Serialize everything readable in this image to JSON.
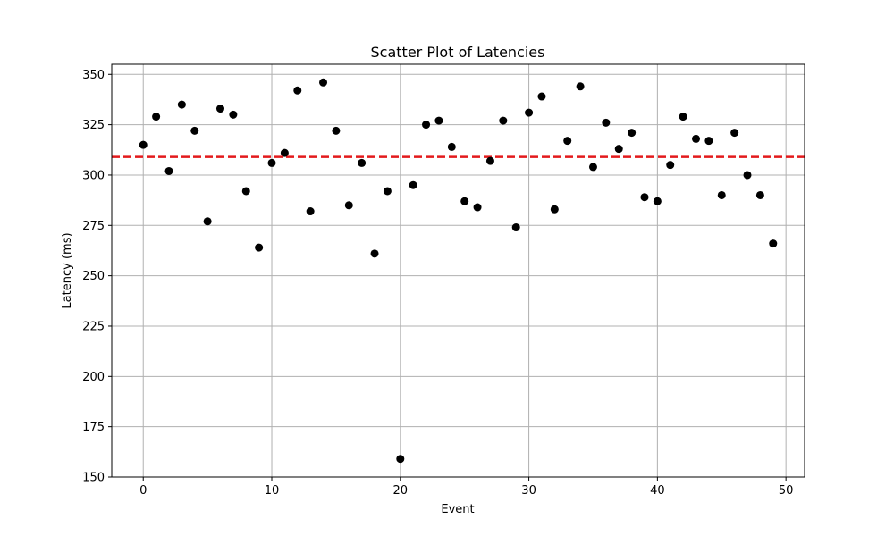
{
  "chart_data": {
    "type": "scatter",
    "title": "Scatter Plot of Latencies",
    "xlabel": "Event",
    "ylabel": "Latency (ms)",
    "xlim": [
      -2.45,
      51.45
    ],
    "ylim": [
      150,
      355
    ],
    "xticks": [
      0,
      10,
      20,
      30,
      40,
      50
    ],
    "yticks": [
      150,
      175,
      200,
      225,
      250,
      275,
      300,
      325,
      350
    ],
    "grid": true,
    "series": [
      {
        "color": "#000000",
        "x": [
          0,
          1,
          2,
          3,
          4,
          5,
          6,
          7,
          8,
          9,
          10,
          11,
          12,
          13,
          14,
          15,
          16,
          17,
          18,
          19,
          20,
          21,
          22,
          23,
          24,
          25,
          26,
          27,
          28,
          29,
          30,
          31,
          32,
          33,
          34,
          35,
          36,
          37,
          38,
          39,
          40,
          41,
          42,
          43,
          44,
          45,
          46,
          47,
          48,
          49
        ],
        "y": [
          315,
          329,
          302,
          335,
          322,
          277,
          333,
          330,
          292,
          264,
          306,
          311,
          342,
          282,
          346,
          322,
          285,
          306,
          261,
          292,
          159,
          295,
          325,
          327,
          314,
          287,
          284,
          307,
          327,
          274,
          331,
          339,
          283,
          317,
          344,
          304,
          326,
          313,
          321,
          289,
          287,
          305,
          329,
          318,
          317,
          290,
          321,
          300,
          290,
          266
        ]
      }
    ],
    "reference_line": {
      "y": 309,
      "color": "#e31a1c",
      "style": "dashed"
    },
    "grid_color": "#b0b0b0"
  }
}
